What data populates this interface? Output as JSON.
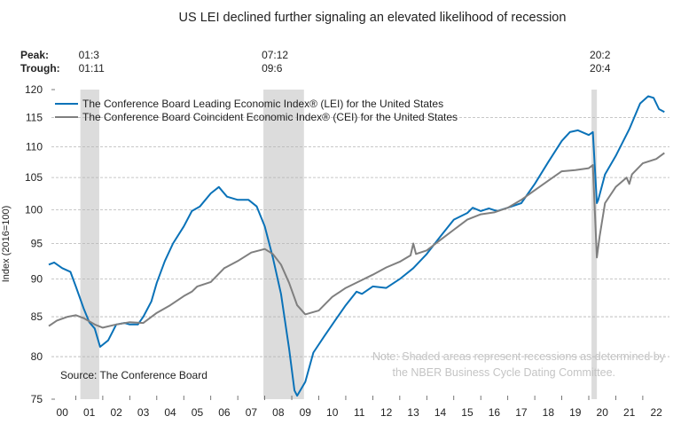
{
  "chart_data": {
    "type": "line",
    "title": "US LEI declined further signaling an elevated likelihood of recession",
    "ylabel": "Index (2016=100)",
    "xlabel": "",
    "y_scale": "log",
    "ylim": [
      75,
      120
    ],
    "yticks": [
      75,
      80,
      85,
      90,
      95,
      100,
      105,
      110,
      115,
      120
    ],
    "xlim": [
      2000,
      2023
    ],
    "xtick_labels": [
      "00",
      "01",
      "02",
      "03",
      "04",
      "05",
      "06",
      "07",
      "08",
      "09",
      "10",
      "11",
      "12",
      "13",
      "14",
      "15",
      "16",
      "17",
      "18",
      "19",
      "20",
      "21",
      "22"
    ],
    "grid": "horizontal dashed",
    "legend_placement": "top-left",
    "source": "Source: The Conference Board",
    "note": [
      "Note: Shaded areas represent recessions as determined by",
      "the NBER Business Cycle Dating Committee."
    ],
    "recession_labels": {
      "peak_label": "Peak:",
      "trough_label": "Trough:"
    },
    "recessions": [
      {
        "peak": "01:3",
        "trough": "01:11",
        "start": 2001.17,
        "end": 2001.87
      },
      {
        "peak": "07:12",
        "trough": "09:6",
        "start": 2007.95,
        "end": 2009.45
      },
      {
        "peak": "20:2",
        "trough": "20:4",
        "start": 2020.1,
        "end": 2020.3
      }
    ],
    "series": [
      {
        "name": "The Conference Board Leading Economic Index® (LEI) for the United States",
        "color": "#0a72b8",
        "points": [
          [
            2000.0,
            92
          ],
          [
            2000.2,
            92.3
          ],
          [
            2000.5,
            91.5
          ],
          [
            2000.8,
            91
          ],
          [
            2001.0,
            89
          ],
          [
            2001.3,
            86
          ],
          [
            2001.5,
            84.3
          ],
          [
            2001.7,
            83.5
          ],
          [
            2001.9,
            81.2
          ],
          [
            2002.2,
            82
          ],
          [
            2002.5,
            84
          ],
          [
            2002.8,
            84.2
          ],
          [
            2003.0,
            84
          ],
          [
            2003.3,
            84
          ],
          [
            2003.5,
            85
          ],
          [
            2003.8,
            87
          ],
          [
            2004.0,
            89.5
          ],
          [
            2004.3,
            92.5
          ],
          [
            2004.6,
            95
          ],
          [
            2005.0,
            97.5
          ],
          [
            2005.3,
            99.8
          ],
          [
            2005.6,
            100.5
          ],
          [
            2006.0,
            102.5
          ],
          [
            2006.3,
            103.5
          ],
          [
            2006.6,
            102
          ],
          [
            2007.0,
            101.5
          ],
          [
            2007.4,
            101.5
          ],
          [
            2007.7,
            100.5
          ],
          [
            2008.0,
            97.5
          ],
          [
            2008.3,
            93
          ],
          [
            2008.6,
            88
          ],
          [
            2008.9,
            81
          ],
          [
            2009.1,
            76
          ],
          [
            2009.2,
            75.4
          ],
          [
            2009.5,
            77
          ],
          [
            2009.8,
            80.5
          ],
          [
            2010.2,
            82.5
          ],
          [
            2010.6,
            84.5
          ],
          [
            2011.0,
            86.5
          ],
          [
            2011.4,
            88.3
          ],
          [
            2011.6,
            88
          ],
          [
            2012.0,
            89
          ],
          [
            2012.5,
            88.8
          ],
          [
            2013.0,
            90
          ],
          [
            2013.5,
            91.5
          ],
          [
            2014.0,
            93.5
          ],
          [
            2014.5,
            96
          ],
          [
            2015.0,
            98.5
          ],
          [
            2015.5,
            99.5
          ],
          [
            2015.7,
            100.3
          ],
          [
            2016.0,
            99.8
          ],
          [
            2016.3,
            100.2
          ],
          [
            2016.6,
            99.8
          ],
          [
            2017.0,
            100.3
          ],
          [
            2017.5,
            101
          ],
          [
            2018.0,
            104
          ],
          [
            2018.5,
            107.5
          ],
          [
            2019.0,
            111
          ],
          [
            2019.3,
            112.5
          ],
          [
            2019.6,
            112.8
          ],
          [
            2020.0,
            112
          ],
          [
            2020.15,
            112.5
          ],
          [
            2020.3,
            101
          ],
          [
            2020.35,
            101.5
          ],
          [
            2020.6,
            105.5
          ],
          [
            2021.0,
            108.5
          ],
          [
            2021.5,
            113
          ],
          [
            2021.9,
            117.5
          ],
          [
            2022.2,
            118.8
          ],
          [
            2022.4,
            118.5
          ],
          [
            2022.6,
            116.5
          ],
          [
            2022.8,
            116
          ]
        ]
      },
      {
        "name": "The Conference Board Coincident Economic Index® (CEI) for the United States",
        "color": "#7f7f7f",
        "points": [
          [
            2000.0,
            83.8
          ],
          [
            2000.3,
            84.5
          ],
          [
            2000.7,
            85
          ],
          [
            2001.0,
            85.2
          ],
          [
            2001.3,
            84.8
          ],
          [
            2001.7,
            84
          ],
          [
            2002.0,
            83.6
          ],
          [
            2002.5,
            84
          ],
          [
            2003.0,
            84.3
          ],
          [
            2003.5,
            84.2
          ],
          [
            2004.0,
            85.5
          ],
          [
            2004.5,
            86.5
          ],
          [
            2005.0,
            87.7
          ],
          [
            2005.3,
            88.3
          ],
          [
            2005.5,
            89
          ],
          [
            2006.0,
            89.6
          ],
          [
            2006.5,
            91.5
          ],
          [
            2007.0,
            92.5
          ],
          [
            2007.5,
            93.7
          ],
          [
            2008.0,
            94.2
          ],
          [
            2008.3,
            93.5
          ],
          [
            2008.6,
            92
          ],
          [
            2008.9,
            89.5
          ],
          [
            2009.2,
            86.5
          ],
          [
            2009.5,
            85.3
          ],
          [
            2010.0,
            85.8
          ],
          [
            2010.5,
            87.6
          ],
          [
            2011.0,
            88.8
          ],
          [
            2011.5,
            89.7
          ],
          [
            2012.0,
            90.6
          ],
          [
            2012.5,
            91.6
          ],
          [
            2013.0,
            92.4
          ],
          [
            2013.4,
            93.3
          ],
          [
            2013.5,
            95
          ],
          [
            2013.6,
            93.5
          ],
          [
            2014.0,
            94
          ],
          [
            2014.5,
            95.5
          ],
          [
            2015.0,
            97
          ],
          [
            2015.5,
            98.5
          ],
          [
            2016.0,
            99.3
          ],
          [
            2016.5,
            99.6
          ],
          [
            2017.0,
            100.3
          ],
          [
            2017.5,
            101.5
          ],
          [
            2018.0,
            103
          ],
          [
            2018.5,
            104.5
          ],
          [
            2019.0,
            106
          ],
          [
            2019.5,
            106.2
          ],
          [
            2020.0,
            106.5
          ],
          [
            2020.15,
            107
          ],
          [
            2020.3,
            93
          ],
          [
            2020.4,
            96
          ],
          [
            2020.6,
            101
          ],
          [
            2021.0,
            103.5
          ],
          [
            2021.4,
            105
          ],
          [
            2021.5,
            104
          ],
          [
            2021.6,
            105.5
          ],
          [
            2022.0,
            107.3
          ],
          [
            2022.5,
            108
          ],
          [
            2022.8,
            109
          ]
        ]
      }
    ]
  }
}
